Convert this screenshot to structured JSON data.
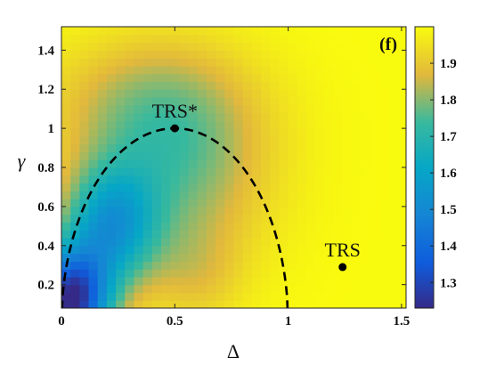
{
  "chart_data": {
    "type": "heatmap",
    "title": "",
    "panel_label": "(f)",
    "xlabel": "Δ",
    "ylabel": "γ",
    "xlim": [
      0,
      1.52
    ],
    "ylim": [
      0.08,
      1.52
    ],
    "x_ticks": [
      0,
      0.5,
      1,
      1.5
    ],
    "x_tick_labels": [
      "0",
      "0.5",
      "1",
      "1.5"
    ],
    "y_ticks": [
      0.2,
      0.4,
      0.6,
      0.8,
      1.0,
      1.2,
      1.4
    ],
    "y_tick_labels": [
      "0.2",
      "0.4",
      "0.6",
      "0.8",
      "1",
      "1.2",
      "1.4"
    ],
    "grid": false,
    "colormap": "parula",
    "colorbar": {
      "range": [
        1.23,
        2.0
      ],
      "ticks": [
        1.3,
        1.4,
        1.5,
        1.6,
        1.7,
        1.8,
        1.9
      ],
      "tick_labels": [
        "1.3",
        "1.4",
        "1.5",
        "1.6",
        "1.7",
        "1.8",
        "1.9"
      ],
      "placement": "right"
    },
    "heatmap_grid": {
      "nx": 38,
      "ny": 36,
      "x_range": [
        0,
        1.52
      ],
      "y_range": [
        0.08,
        1.52
      ]
    },
    "boundary_curve": {
      "style": "dashed",
      "color": "#000000",
      "equation": "γ = sqrt(Δ(1-Δ)) * 2",
      "x_range": [
        0,
        1
      ]
    },
    "points": [
      {
        "label": "TRS*",
        "x": 0.5,
        "y": 1.0
      },
      {
        "label": "TRS",
        "x": 1.24,
        "y": 0.29
      }
    ]
  }
}
